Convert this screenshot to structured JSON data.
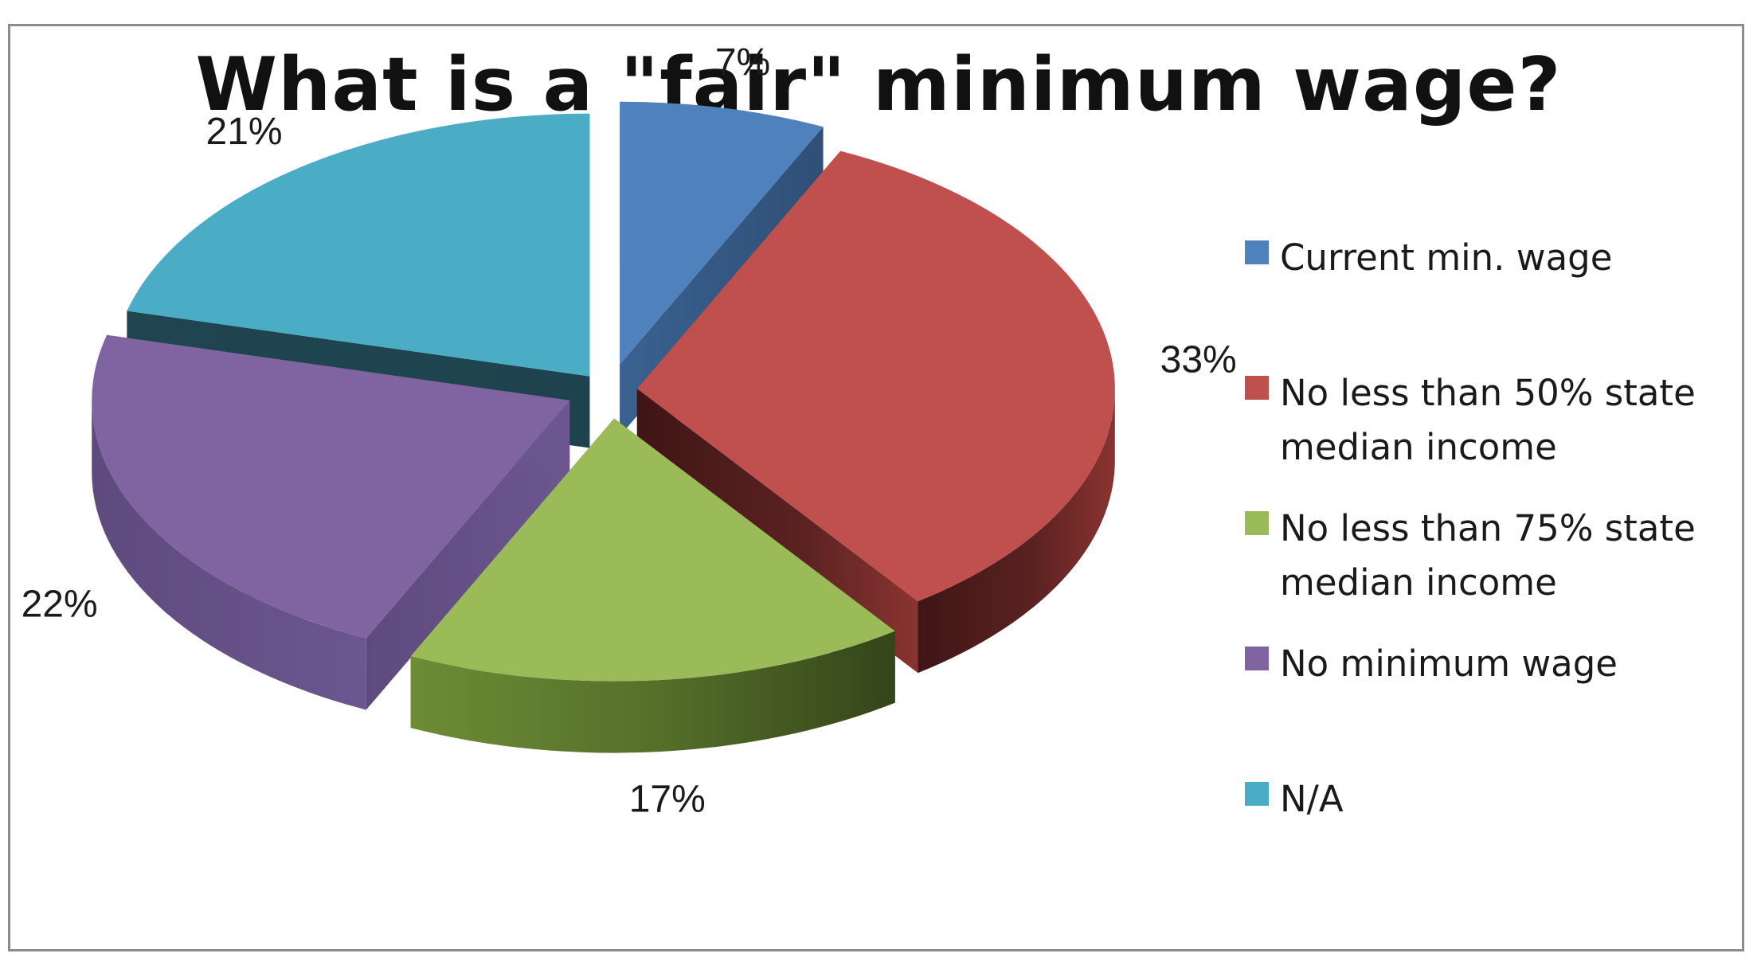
{
  "chart_data": {
    "type": "pie",
    "title": "What is a \"fair\" minimum wage?",
    "categories": [
      "Current min. wage",
      "No less than 50% state median income",
      "No less than 75% state median income",
      "No minimum wage",
      "N/A"
    ],
    "values": [
      7,
      33,
      17,
      22,
      21
    ],
    "value_labels": [
      "7%",
      "33%",
      "17%",
      "22%",
      "21%"
    ],
    "colors": [
      "#4f81bd",
      "#c0504d",
      "#9bbb59",
      "#8064a2",
      "#4bacc6"
    ],
    "legend": "right",
    "style": "3d-exploded"
  }
}
